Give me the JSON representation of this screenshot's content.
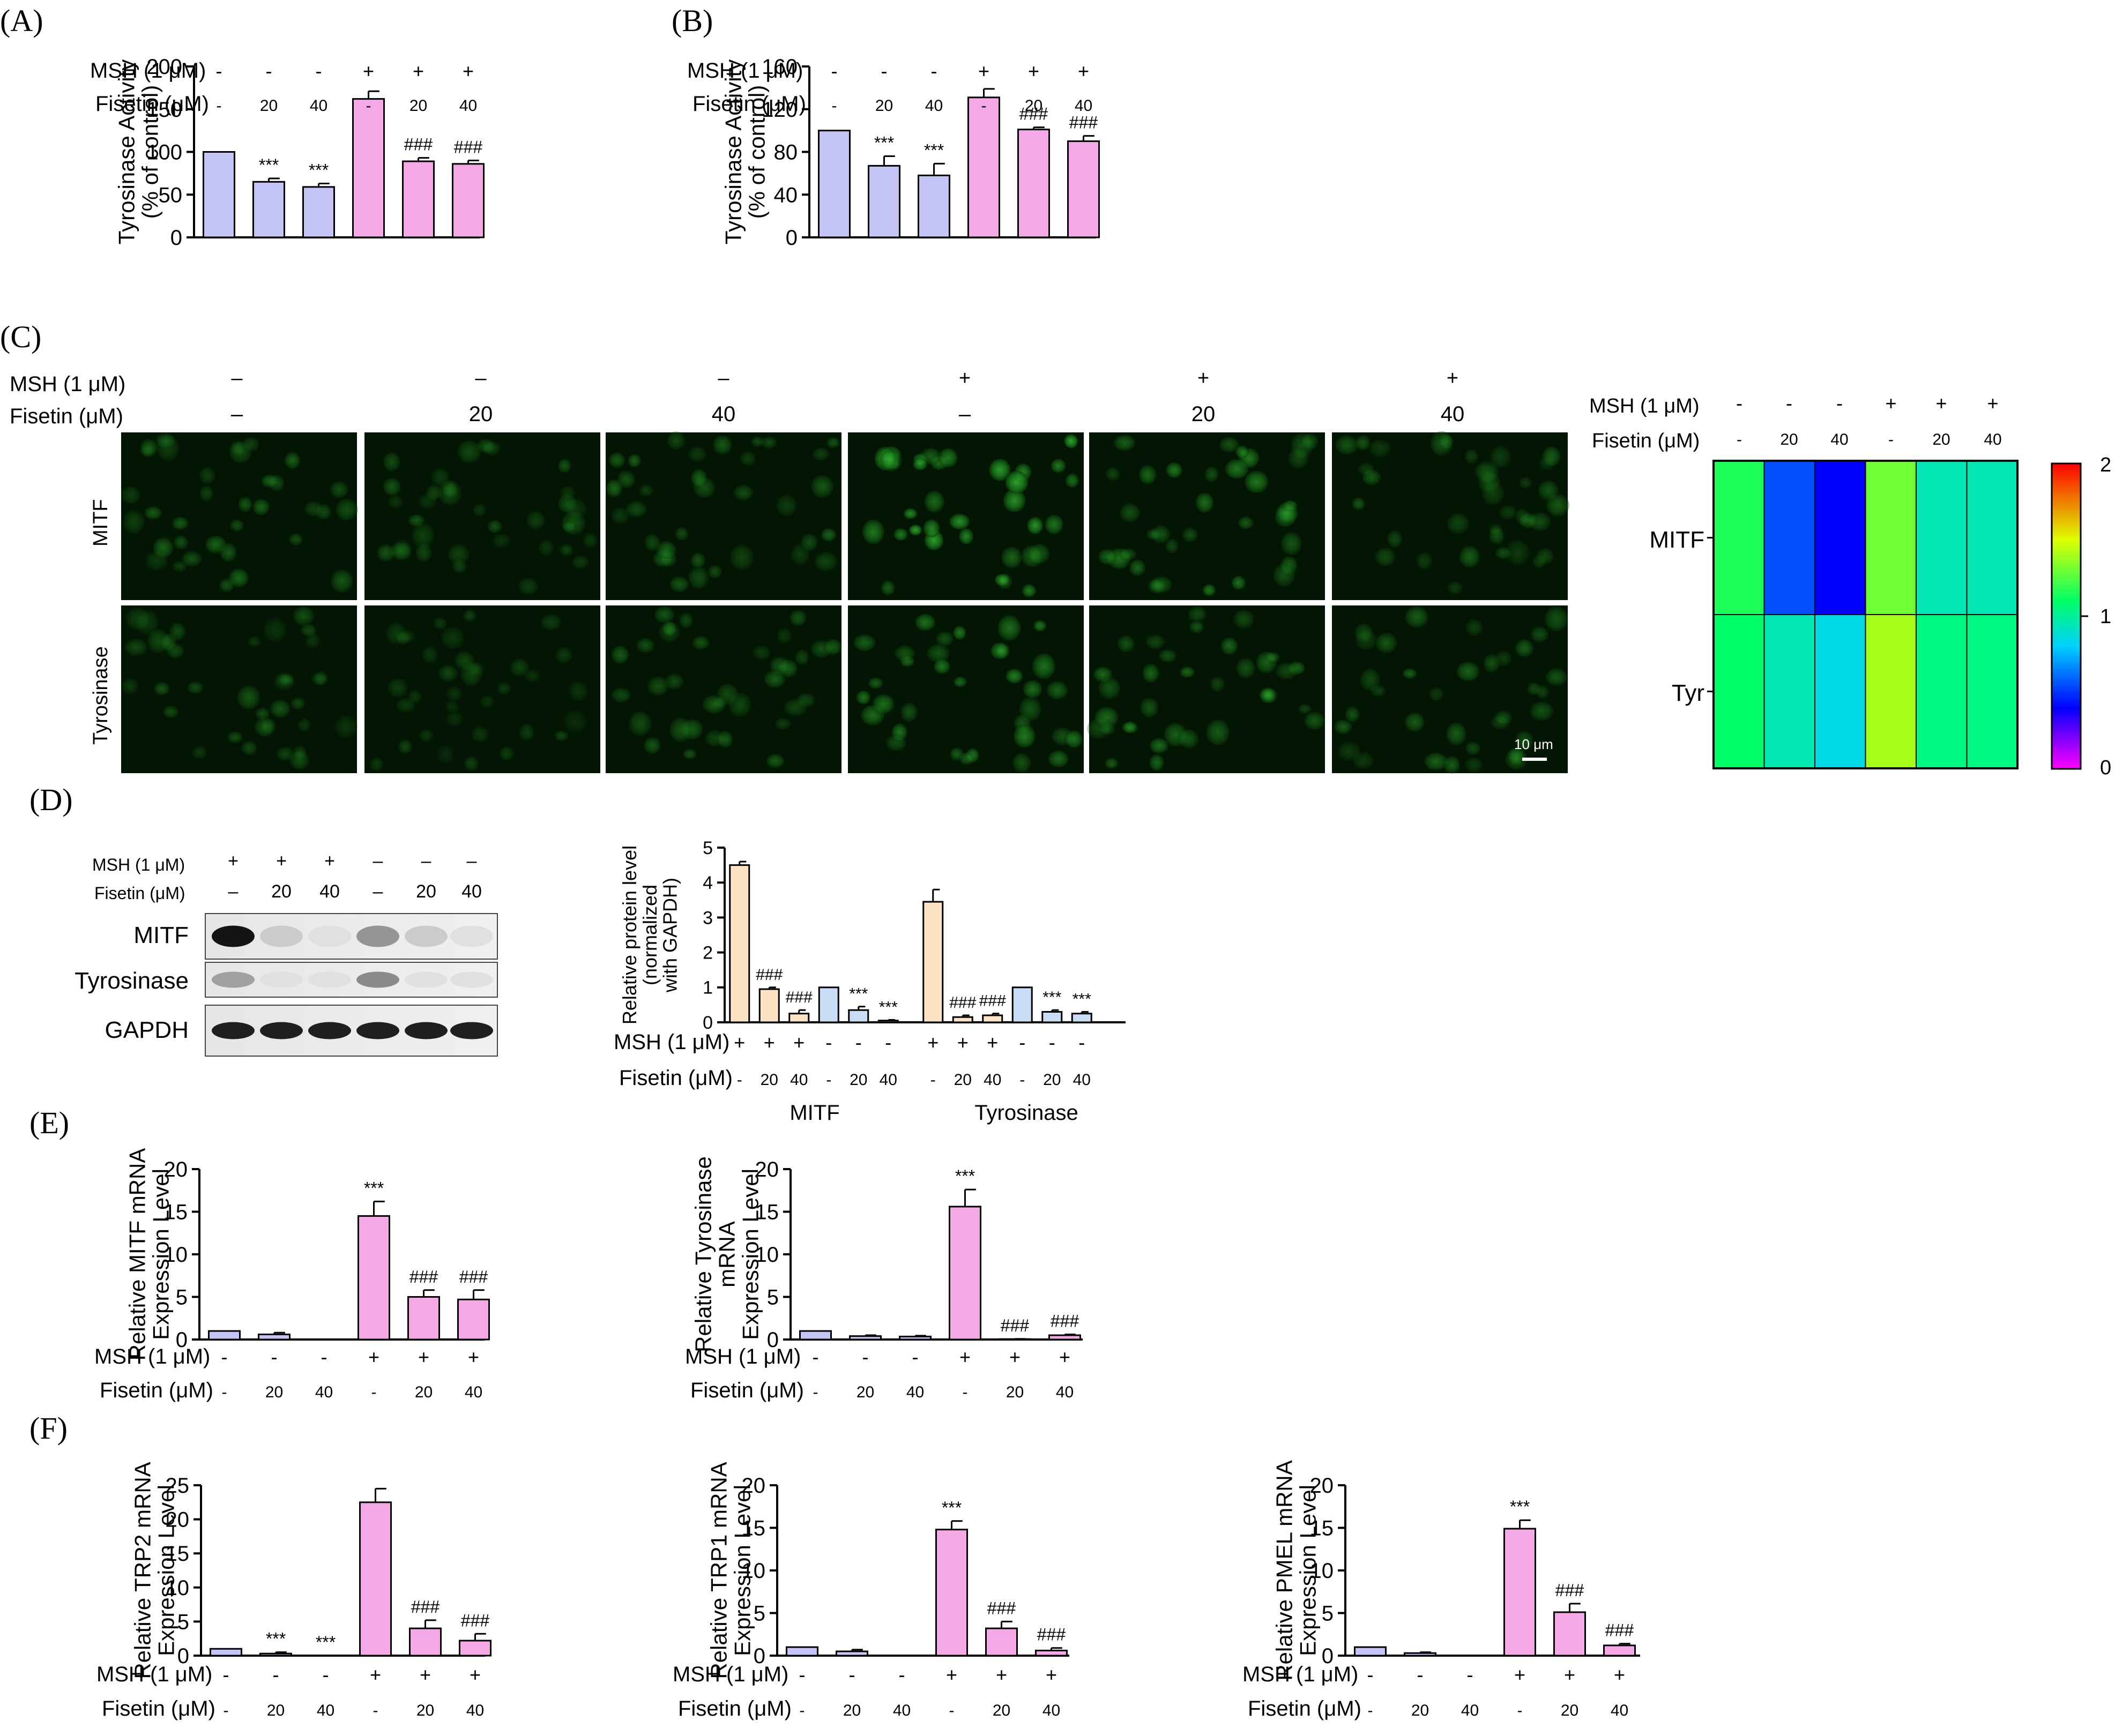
{
  "panel_labels": {
    "A": "(A)",
    "B": "(B)",
    "C": "(C)",
    "D": "(D)",
    "E": "(E)",
    "F": "(F)"
  },
  "row_labels": {
    "msh": "MSH (1 μM)",
    "fisetin": "Fisetin (μM)"
  },
  "treatment_signs": {
    "msh": [
      "-",
      "-",
      "-",
      "+",
      "+",
      "+"
    ],
    "fisetin": [
      "-",
      "20",
      "40",
      "-",
      "20",
      "40"
    ]
  },
  "colors": {
    "control_bar": "#c4c4f7",
    "msh_bar": "#f5a8e6",
    "mitf_bar": "#fde2c4",
    "tyr_bar": "#c8dcf5"
  },
  "panel_C": {
    "msh_row": [
      "–",
      "–",
      "–",
      "+",
      "+",
      "+"
    ],
    "fisetin_row": [
      "–",
      "20",
      "40",
      "–",
      "20",
      "40"
    ],
    "image_rows": [
      "MITF",
      "Tyrosinase"
    ],
    "scale_bar": "10 μm",
    "heatmap": {
      "rows": [
        "MITF",
        "Tyr"
      ],
      "values": [
        [
          1.15,
          0.55,
          0.4,
          1.3,
          0.95,
          0.95
        ],
        [
          1.1,
          0.95,
          0.85,
          1.4,
          1.05,
          1.05
        ]
      ],
      "colorbar_ticks": [
        "2",
        "1",
        "0"
      ],
      "range": [
        0,
        2
      ]
    }
  },
  "panel_D": {
    "blot_msh": [
      "+",
      "+",
      "+",
      "–",
      "–",
      "–"
    ],
    "blot_fisetin": [
      "–",
      "20",
      "40",
      "–",
      "20",
      "40"
    ],
    "blot_rows": [
      "MITF",
      "Tyrosinase",
      "GAPDH"
    ],
    "group_labels": [
      "MITF",
      "Tyrosinase"
    ],
    "msh_signs": [
      "+",
      "+",
      "+",
      "-",
      "-",
      "-",
      "+",
      "+",
      "+",
      "-",
      "-",
      "-"
    ],
    "fisetin_signs": [
      "-",
      "20",
      "40",
      "-",
      "20",
      "40",
      "-",
      "20",
      "40",
      "-",
      "20",
      "40"
    ]
  },
  "chart_data": [
    {
      "id": "A",
      "type": "bar",
      "ylabel": "Tyrosinase Activity\n(% of control)",
      "ylim": [
        0,
        200
      ],
      "yticks": [
        0,
        50,
        100,
        150,
        200
      ],
      "values": [
        100,
        65,
        59,
        162,
        89,
        86
      ],
      "errors": [
        0,
        4,
        4,
        9,
        4,
        4
      ],
      "sig": [
        "",
        "***",
        "***",
        "",
        "###",
        "###"
      ],
      "colors": [
        "ctrl",
        "ctrl",
        "ctrl",
        "msh",
        "msh",
        "msh"
      ]
    },
    {
      "id": "B",
      "type": "bar",
      "ylabel": "Tyrosinase Activity\n(% of control)",
      "ylim": [
        0,
        160
      ],
      "yticks": [
        0,
        40,
        80,
        120,
        160
      ],
      "values": [
        100,
        67,
        58,
        131,
        101,
        90
      ],
      "errors": [
        0,
        9,
        11,
        8,
        2,
        5
      ],
      "sig": [
        "",
        "***",
        "***",
        "",
        "###",
        "###"
      ],
      "colors": [
        "ctrl",
        "ctrl",
        "ctrl",
        "msh",
        "msh",
        "msh"
      ]
    },
    {
      "id": "D",
      "type": "bar",
      "ylabel": "Relative protein level\n(normalized\nwith GAPDH)",
      "ylim": [
        0,
        5
      ],
      "yticks": [
        0,
        1,
        2,
        3,
        4,
        5
      ],
      "values": [
        4.5,
        0.95,
        0.25,
        1.0,
        0.35,
        0.05,
        3.45,
        0.15,
        0.2,
        1.0,
        0.3,
        0.25
      ],
      "errors": [
        0.1,
        0.05,
        0.1,
        0,
        0.1,
        0.02,
        0.35,
        0.05,
        0.05,
        0,
        0.05,
        0.05
      ],
      "sig": [
        "",
        "###",
        "###",
        "",
        "***",
        "***",
        "",
        "###",
        "###",
        "",
        "***",
        "***"
      ],
      "colors": [
        "mitf",
        "mitf",
        "mitf",
        "tyr",
        "tyr",
        "tyr",
        "mitf",
        "mitf",
        "mitf",
        "tyr",
        "tyr",
        "tyr"
      ]
    },
    {
      "id": "E1",
      "type": "bar",
      "ylabel": "Relative MITF mRNA\nExpression Level",
      "ylim": [
        0,
        20
      ],
      "yticks": [
        0,
        5,
        10,
        15,
        20
      ],
      "values": [
        1.0,
        0.6,
        0.0,
        14.5,
        5.0,
        4.7
      ],
      "errors": [
        0,
        0.2,
        0,
        1.7,
        0.8,
        1.1
      ],
      "sig": [
        "",
        "",
        "",
        "***",
        "###",
        "###"
      ],
      "colors": [
        "ctrl",
        "ctrl",
        "ctrl",
        "msh",
        "msh",
        "msh"
      ]
    },
    {
      "id": "E2",
      "type": "bar",
      "ylabel": "Relative Tyrosinase\nmRNA\nExpression Level",
      "ylim": [
        0,
        20
      ],
      "yticks": [
        0,
        5,
        10,
        15,
        20
      ],
      "values": [
        1.0,
        0.4,
        0.35,
        15.6,
        0.05,
        0.5
      ],
      "errors": [
        0,
        0.1,
        0.1,
        2.0,
        0.02,
        0.1
      ],
      "sig": [
        "",
        "",
        "",
        "***",
        "###",
        "###"
      ],
      "colors": [
        "ctrl",
        "ctrl",
        "ctrl",
        "msh",
        "msh",
        "msh"
      ]
    },
    {
      "id": "F1",
      "type": "bar",
      "ylabel": "Relative TRP2 mRNA\nExpression Level",
      "ylim": [
        0,
        25
      ],
      "yticks": [
        0,
        5,
        10,
        15,
        20,
        25
      ],
      "values": [
        1.0,
        0.3,
        0.0,
        22.5,
        4.0,
        2.2
      ],
      "errors": [
        0,
        0.2,
        0,
        2.0,
        1.2,
        1.0
      ],
      "sig": [
        "",
        "***",
        "***",
        "",
        "###",
        "###"
      ],
      "colors": [
        "ctrl",
        "ctrl",
        "ctrl",
        "msh",
        "msh",
        "msh"
      ]
    },
    {
      "id": "F2",
      "type": "bar",
      "ylabel": "Relative TRP1 mRNA\nExpression Level",
      "ylim": [
        0,
        20
      ],
      "yticks": [
        0,
        5,
        10,
        15,
        20
      ],
      "values": [
        1.0,
        0.5,
        0.0,
        14.8,
        3.2,
        0.6
      ],
      "errors": [
        0,
        0.2,
        0,
        1.0,
        0.8,
        0.3
      ],
      "sig": [
        "",
        "",
        "",
        "***",
        "###",
        "###"
      ],
      "colors": [
        "ctrl",
        "ctrl",
        "ctrl",
        "msh",
        "msh",
        "msh"
      ]
    },
    {
      "id": "F3",
      "type": "bar",
      "ylabel": "Relative PMEL mRNA\nExpression Level",
      "ylim": [
        0,
        20
      ],
      "yticks": [
        0,
        5,
        10,
        15,
        20
      ],
      "values": [
        1.0,
        0.3,
        0.0,
        14.9,
        5.1,
        1.2
      ],
      "errors": [
        0,
        0.1,
        0,
        1.0,
        1.0,
        0.2
      ],
      "sig": [
        "",
        "",
        "",
        "***",
        "###",
        "###"
      ],
      "colors": [
        "ctrl",
        "ctrl",
        "ctrl",
        "msh",
        "msh",
        "msh"
      ]
    }
  ]
}
